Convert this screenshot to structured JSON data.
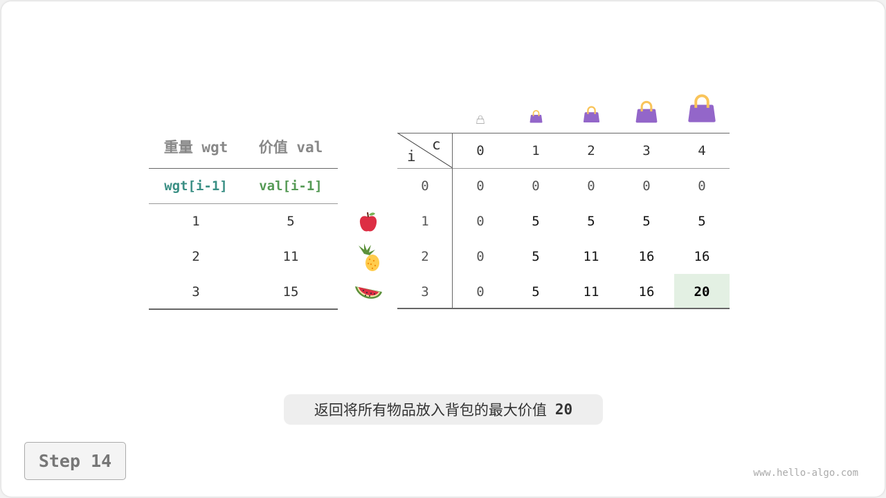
{
  "items_table": {
    "headers": [
      "重量 wgt",
      "价值 val"
    ],
    "subheaders": [
      "wgt[i-1]",
      "val[i-1]"
    ],
    "rows": [
      [
        "1",
        "5"
      ],
      [
        "2",
        "11"
      ],
      [
        "3",
        "15"
      ]
    ],
    "fruit_icons": [
      "apple-icon",
      "pineapple-icon",
      "watermelon-icon"
    ]
  },
  "dp_table": {
    "row_label": "i",
    "col_label": "c",
    "col_headers": [
      "0",
      "1",
      "2",
      "3",
      "4"
    ],
    "row_headers": [
      "0",
      "1",
      "2",
      "3"
    ],
    "rows": [
      [
        "0",
        "0",
        "0",
        "0",
        "0"
      ],
      [
        "0",
        "5",
        "5",
        "5",
        "5"
      ],
      [
        "0",
        "5",
        "11",
        "16",
        "16"
      ],
      [
        "0",
        "5",
        "11",
        "16",
        "20"
      ]
    ],
    "highlight": {
      "row": 3,
      "col": 4,
      "color": "#e3f0e3"
    }
  },
  "colors": {
    "wgt": "#3a8f84",
    "val": "#559a55",
    "bag": "#9366c9",
    "handle": "#f9c45a"
  },
  "caption": {
    "text": "返回将所有物品放入背包的最大价值",
    "value": "20"
  },
  "step_label": "Step 14",
  "watermark": "www.hello-algo.com"
}
